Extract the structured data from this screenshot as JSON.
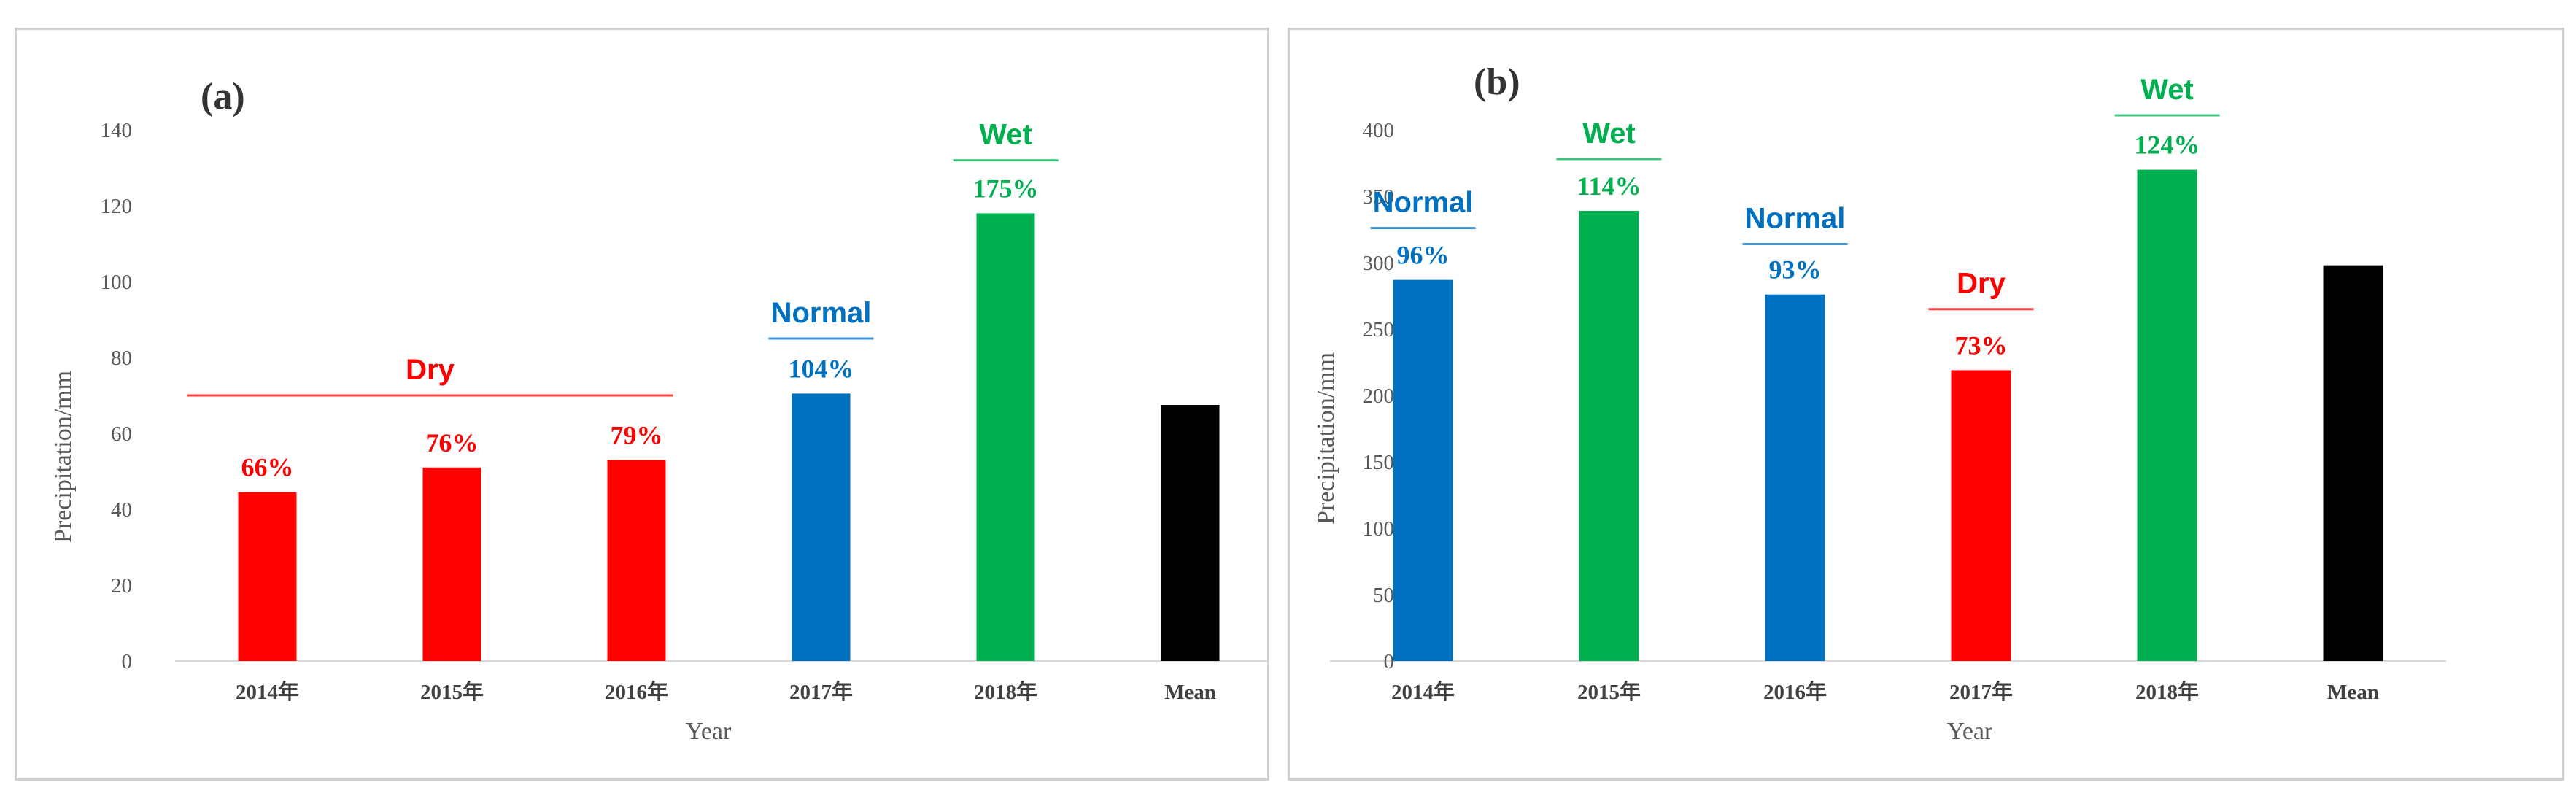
{
  "chart_data": [
    {
      "type": "bar",
      "panel_label": "(a)",
      "categories": [
        "2014年",
        "2015年",
        "2016年",
        "2017年",
        "2018年",
        "Mean"
      ],
      "values": [
        44.5,
        51,
        53,
        70.5,
        118,
        67.5
      ],
      "bar_colors": [
        "#ff0000",
        "#ff0000",
        "#ff0000",
        "#0070c0",
        "#00b050",
        "#000000"
      ],
      "percent_labels": [
        "66%",
        "76%",
        "79%",
        "104%",
        "175%",
        ""
      ],
      "classifications": [
        {
          "label": "Dry",
          "color": "#ff0000",
          "from": 0,
          "to": 2,
          "y": 70
        },
        {
          "label": "Normal",
          "color": "#0070c0",
          "from": 3,
          "to": 3,
          "y": 85
        },
        {
          "label": "Wet",
          "color": "#00b050",
          "from": 4,
          "to": 4,
          "y": 132
        }
      ],
      "yticks": [
        0,
        20,
        40,
        60,
        80,
        100,
        120,
        140
      ],
      "ylim": [
        0,
        140
      ],
      "xlabel": "Year",
      "ylabel": "Precipitation/mm"
    },
    {
      "type": "bar",
      "panel_label": "(b)",
      "categories": [
        "2014年",
        "2015年",
        "2016年",
        "2017年",
        "2018年",
        "Mean"
      ],
      "values": [
        287,
        339,
        276,
        219,
        370,
        298
      ],
      "bar_colors": [
        "#0070c0",
        "#00b050",
        "#0070c0",
        "#ff0000",
        "#00b050",
        "#000000"
      ],
      "percent_labels": [
        "96%",
        "114%",
        "93%",
        "73%",
        "124%",
        ""
      ],
      "classifications": [
        {
          "label": "Normal",
          "color": "#0070c0",
          "from": 0,
          "to": 0,
          "y": 326
        },
        {
          "label": "Wet",
          "color": "#00b050",
          "from": 1,
          "to": 1,
          "y": 378
        },
        {
          "label": "Normal",
          "color": "#0070c0",
          "from": 2,
          "to": 2,
          "y": 314
        },
        {
          "label": "Dry",
          "color": "#ff0000",
          "from": 3,
          "to": 3,
          "y": 265
        },
        {
          "label": "Wet",
          "color": "#00b050",
          "from": 4,
          "to": 4,
          "y": 411
        }
      ],
      "yticks": [
        0,
        50,
        100,
        150,
        200,
        250,
        300,
        350,
        400
      ],
      "ylim": [
        0,
        400
      ],
      "xlabel": "Year",
      "ylabel": "Precipitation/mm"
    }
  ]
}
